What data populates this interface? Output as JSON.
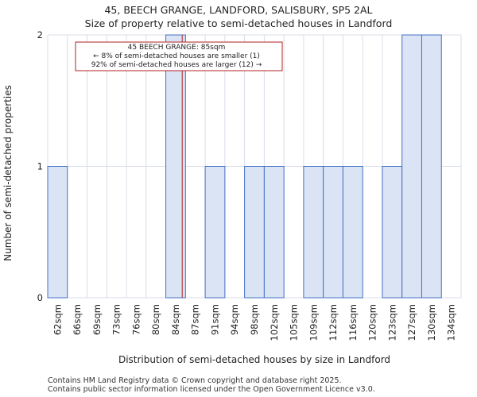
{
  "title": "45, BEECH GRANGE, LANDFORD, SALISBURY, SP5 2AL",
  "subtitle": "Size of property relative to semi-detached houses in Landford",
  "footer": {
    "line1": "Contains HM Land Registry data © Crown copyright and database right 2025.",
    "line2": "Contains public sector information licensed under the Open Government Licence v3.0."
  },
  "colors": {
    "bar_fill": "#dbe4f5",
    "bar_stroke": "#4472c4",
    "grid": "#d8dde8",
    "marker": "#b22222"
  },
  "chart_data": {
    "type": "bar",
    "title": "45, BEECH GRANGE, LANDFORD, SALISBURY, SP5 2AL",
    "subtitle": "Size of property relative to semi-detached houses in Landford",
    "xlabel": "Distribution of semi-detached houses by size in Landford",
    "ylabel": "Number of semi-detached properties",
    "categories": [
      "62sqm",
      "66sqm",
      "69sqm",
      "73sqm",
      "76sqm",
      "80sqm",
      "84sqm",
      "87sqm",
      "91sqm",
      "94sqm",
      "98sqm",
      "102sqm",
      "105sqm",
      "109sqm",
      "112sqm",
      "116sqm",
      "120sqm",
      "123sqm",
      "127sqm",
      "130sqm",
      "134sqm"
    ],
    "values": [
      1,
      0,
      0,
      0,
      0,
      0,
      2,
      0,
      1,
      0,
      1,
      1,
      0,
      1,
      1,
      1,
      0,
      1,
      2,
      2,
      0
    ],
    "ylim": [
      0,
      2
    ],
    "yticks": [
      "0",
      "1",
      "2"
    ],
    "grid": true,
    "marker": {
      "value_sqm": 85
    },
    "annotation": {
      "line1": "45 BEECH GRANGE: 85sqm",
      "line2": "← 8% of semi-detached houses are smaller (1)",
      "line3": "92% of semi-detached houses are larger (12) →"
    }
  }
}
